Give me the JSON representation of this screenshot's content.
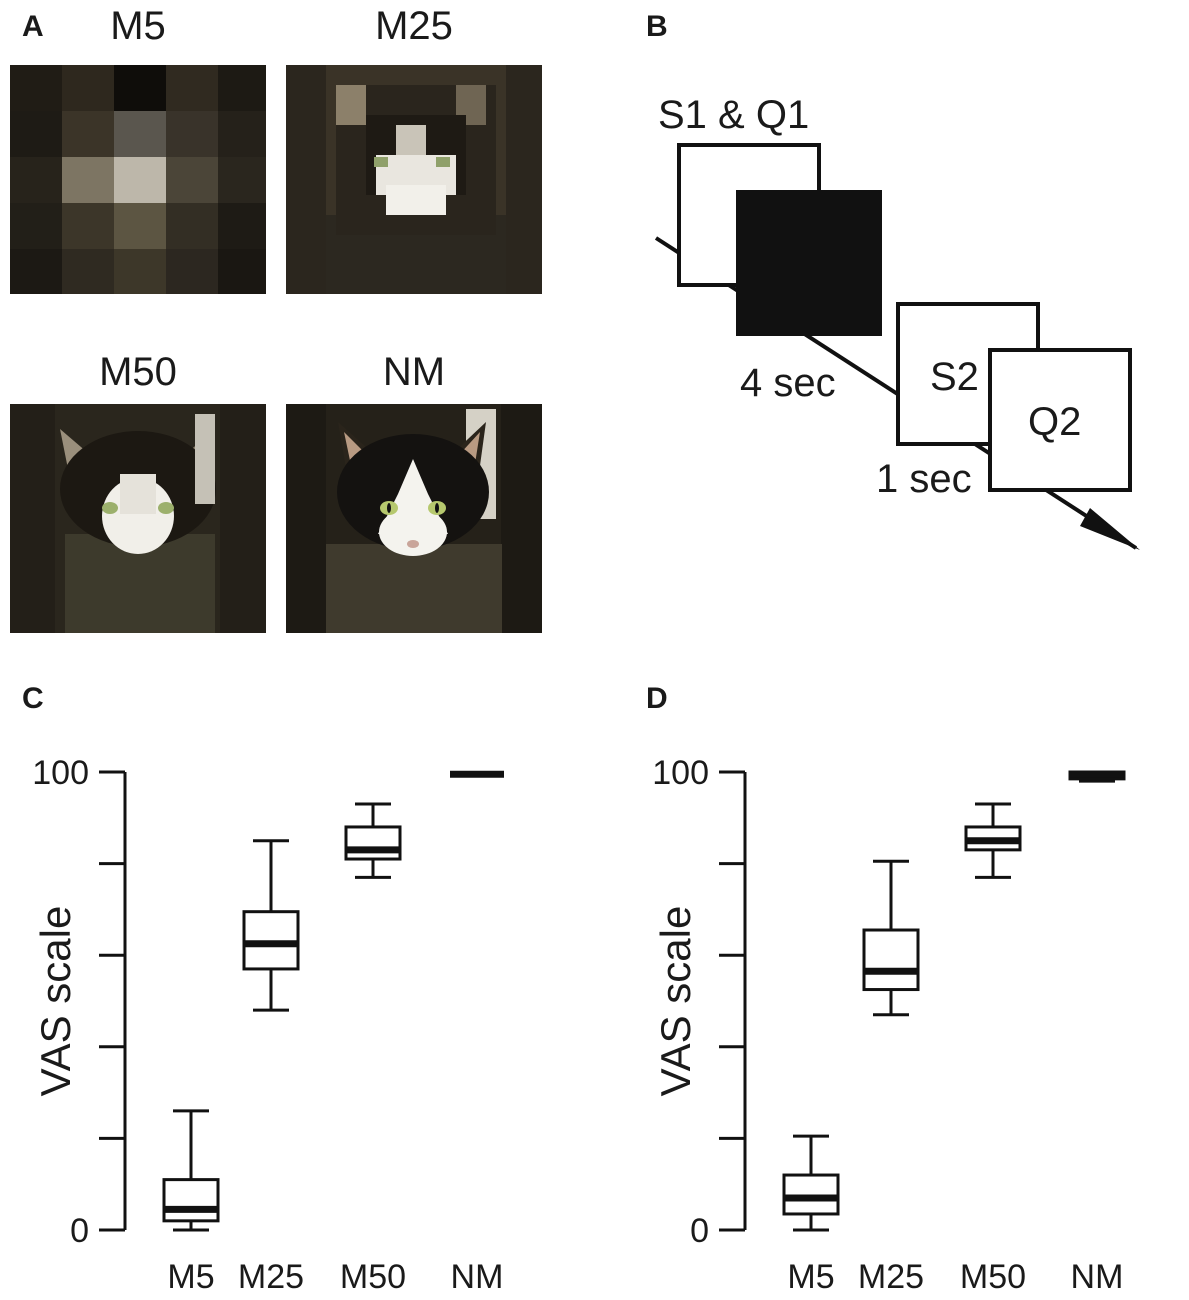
{
  "panels": {
    "A": "A",
    "B": "B",
    "C": "C",
    "D": "D"
  },
  "panel_a": {
    "images": [
      {
        "label": "M5",
        "mosaic": 5,
        "depicts": "cat"
      },
      {
        "label": "M25",
        "mosaic": 25,
        "depicts": "cat"
      },
      {
        "label": "M50",
        "mosaic": 50,
        "depicts": "cat"
      },
      {
        "label": "NM",
        "mosaic": 0,
        "depicts": "cat"
      }
    ]
  },
  "panel_b": {
    "s1_q1": "S1 & Q1",
    "delay1": "4 sec",
    "s2": "S2",
    "delay2": "1 sec",
    "q2": "Q2"
  },
  "chart_data": [
    {
      "type": "box",
      "panel": "C",
      "ylabel": "VAS scale",
      "ylim": [
        0,
        100
      ],
      "yticks": [
        0,
        20,
        40,
        60,
        80,
        100
      ],
      "ytick_labels": [
        "0",
        "",
        "",
        "",
        "",
        "100"
      ],
      "categories": [
        "M5",
        "M25",
        "M50",
        "NM"
      ],
      "boxes": [
        {
          "min": 0,
          "q1": 2,
          "median": 4.5,
          "q3": 11,
          "max": 26
        },
        {
          "min": 48,
          "q1": 57,
          "median": 62.5,
          "q3": 69.5,
          "max": 85
        },
        {
          "min": 77,
          "q1": 81,
          "median": 83,
          "q3": 88,
          "max": 93
        },
        {
          "min": 99.5,
          "q1": 99.5,
          "median": 99.5,
          "q3": 99.5,
          "max": 99.5
        }
      ]
    },
    {
      "type": "box",
      "panel": "D",
      "ylabel": "VAS scale",
      "ylim": [
        0,
        100
      ],
      "yticks": [
        0,
        20,
        40,
        60,
        80,
        100
      ],
      "ytick_labels": [
        "0",
        "",
        "",
        "",
        "",
        "100"
      ],
      "categories": [
        "M5",
        "M25",
        "M50",
        "NM"
      ],
      "boxes": [
        {
          "min": 0,
          "q1": 3.5,
          "median": 7,
          "q3": 12,
          "max": 20.5
        },
        {
          "min": 47,
          "q1": 52.5,
          "median": 56.5,
          "q3": 65.5,
          "max": 80.5
        },
        {
          "min": 77,
          "q1": 83,
          "median": 85,
          "q3": 88,
          "max": 93
        },
        {
          "min": 98,
          "q1": 98.5,
          "median": 99.5,
          "q3": 100,
          "max": 100
        }
      ]
    }
  ]
}
